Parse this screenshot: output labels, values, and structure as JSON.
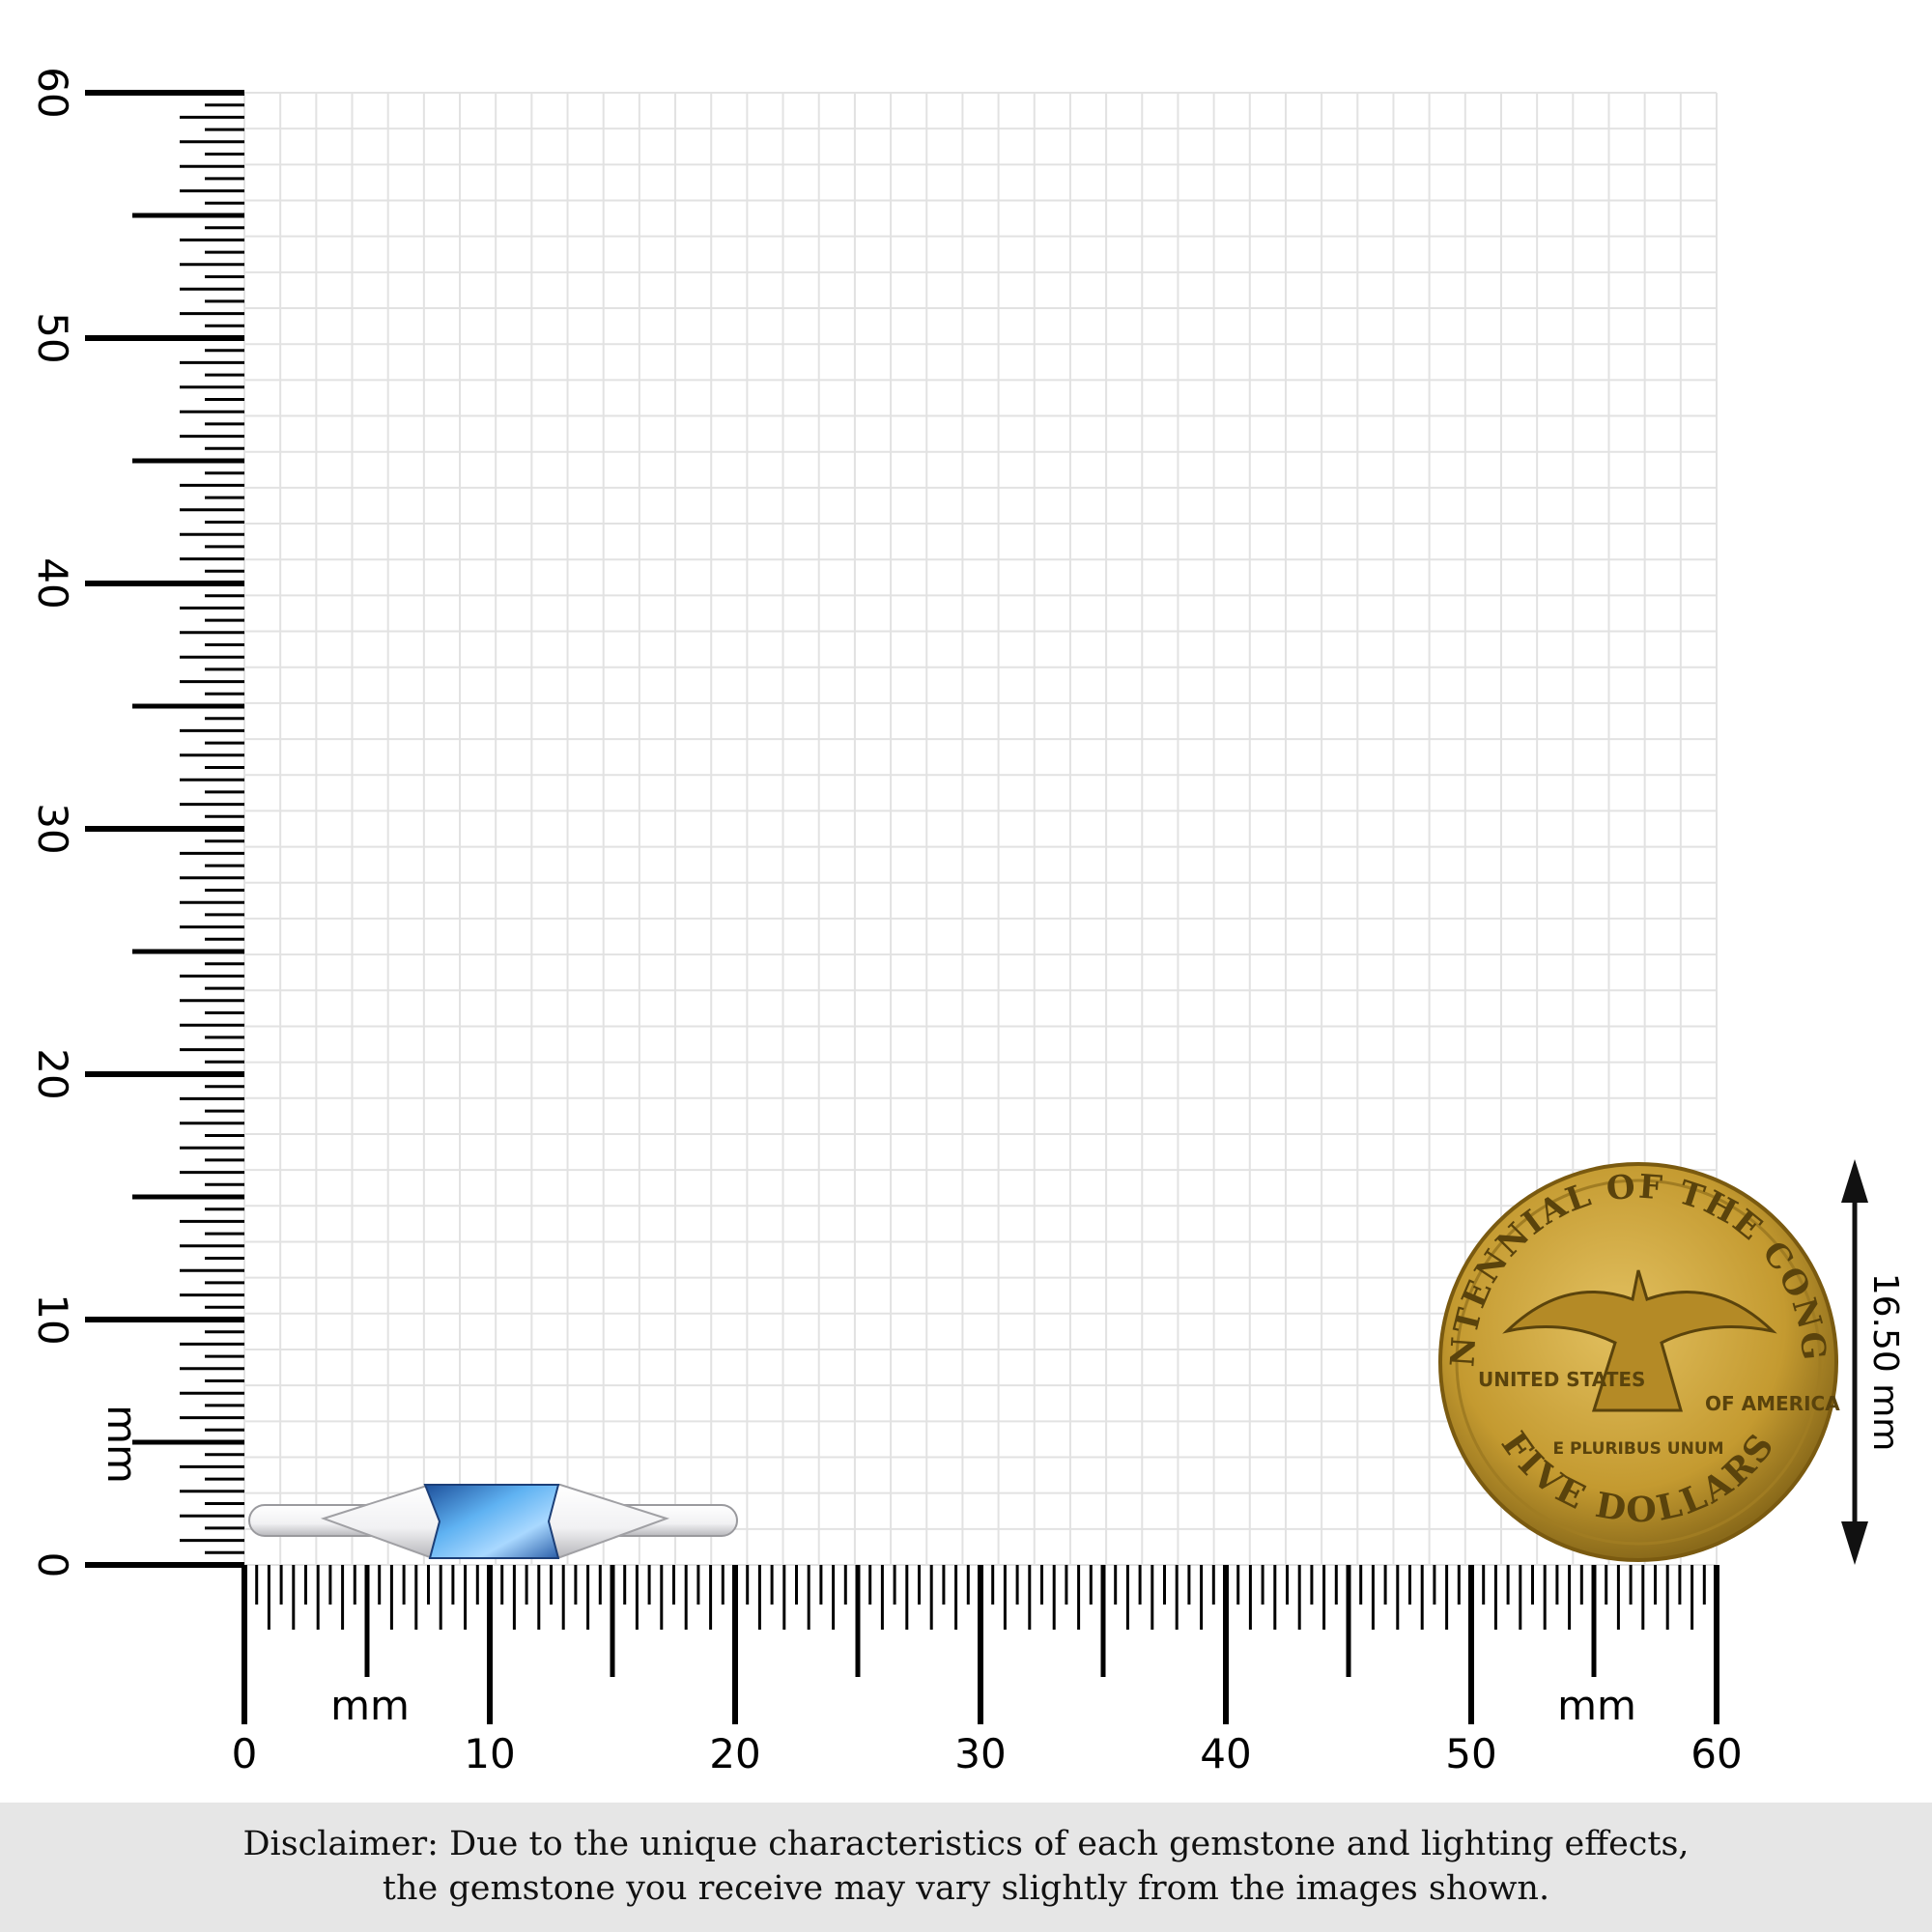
{
  "ruler": {
    "unit_label": "mm",
    "range_mm": [
      0,
      60
    ],
    "x_labels": [
      "0",
      "10",
      "20",
      "30",
      "40",
      "50",
      "60"
    ],
    "y_labels": [
      "0",
      "10",
      "20",
      "30",
      "40",
      "50",
      "60"
    ]
  },
  "coin": {
    "top_text": "BICENTENNIAL OF THE CONGRESS",
    "left_text": "UNITED STATES",
    "right_text": "OF AMERICA",
    "motto": "E PLURIBUS UNUM",
    "bottom_text": "FIVE DOLLARS",
    "diameter_label": "16.50 mm",
    "color": "#c9a43a"
  },
  "ring": {
    "gem_color": "#3f8fe0",
    "metal_color": "#e8e8ea"
  },
  "disclaimer": {
    "line1": "Disclaimer: Due to the unique characteristics of each gemstone and lighting effects,",
    "line2": "the gemstone you receive may vary slightly from the images shown."
  }
}
